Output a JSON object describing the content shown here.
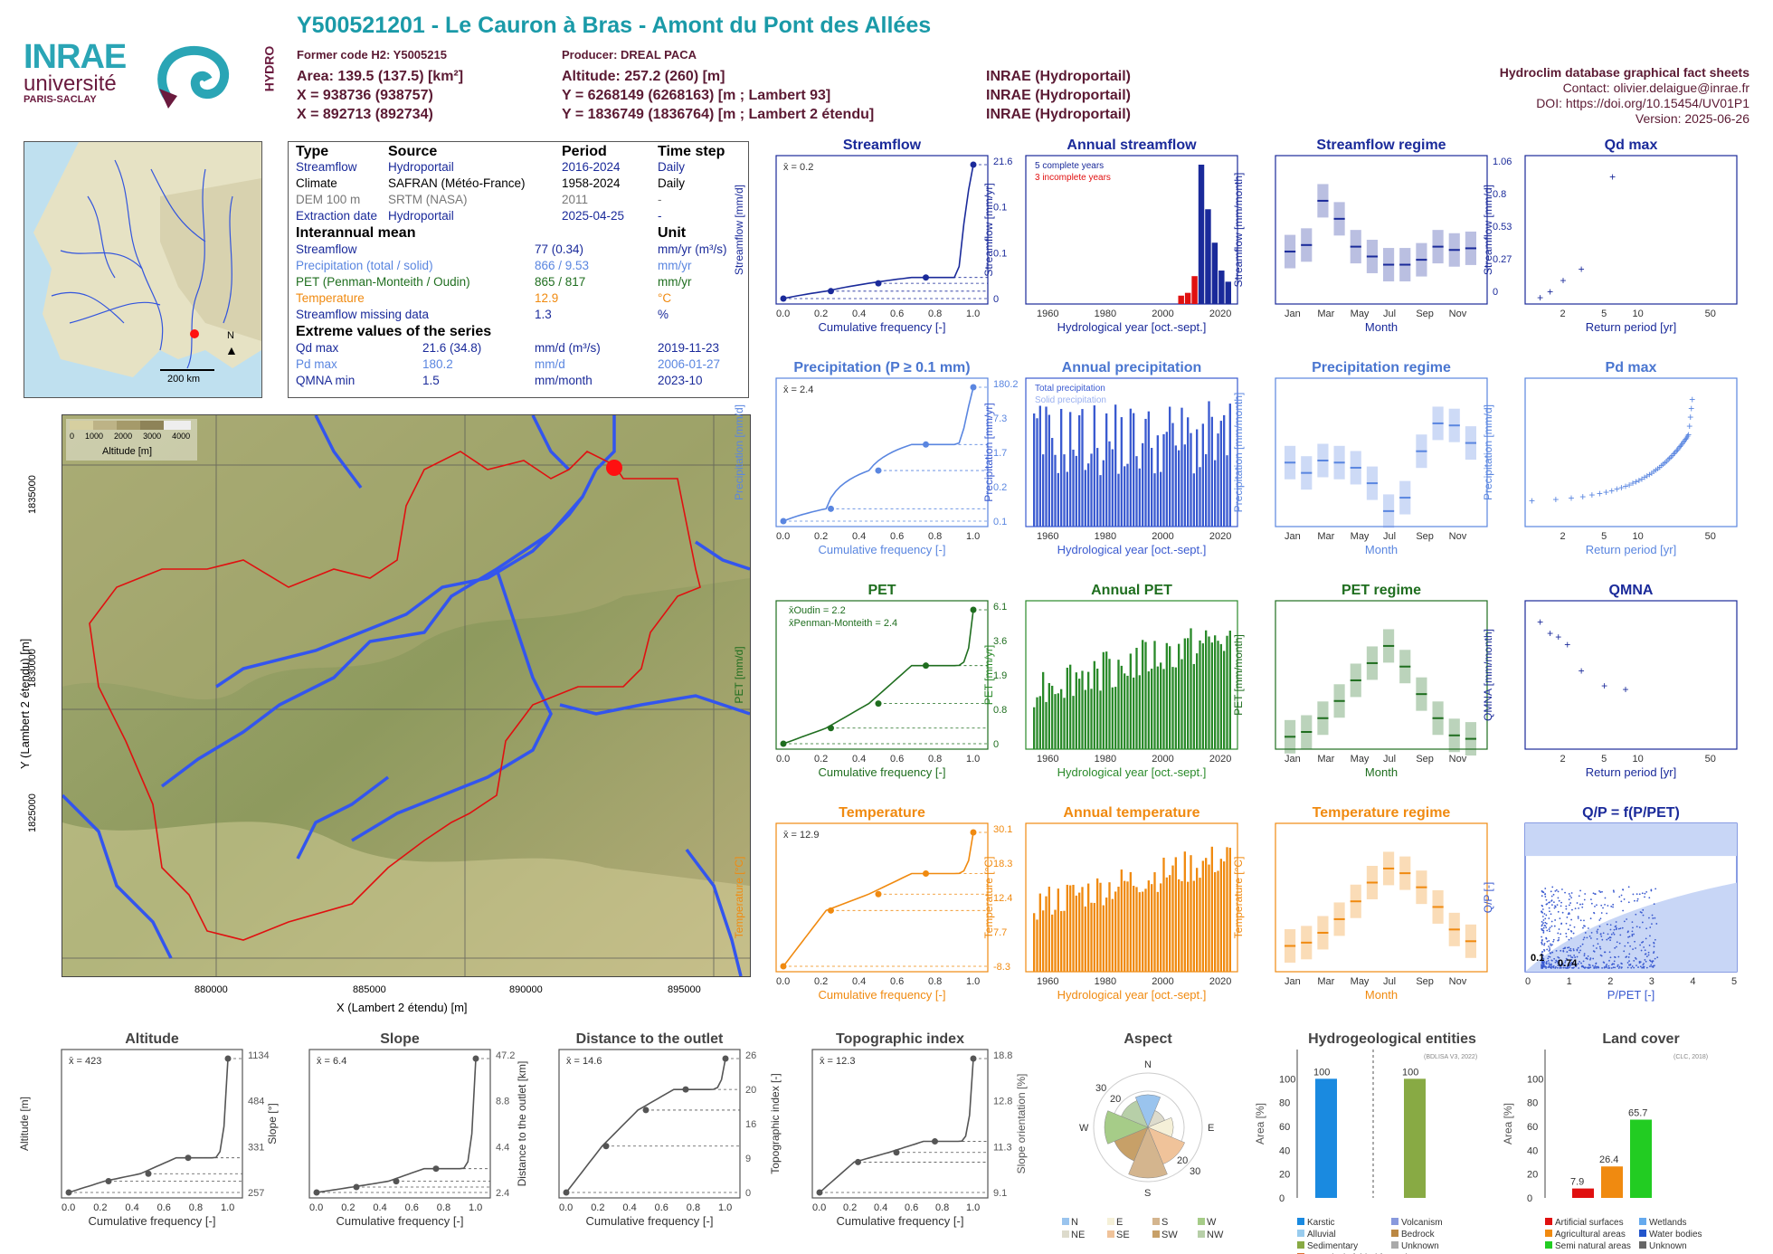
{
  "header": {
    "title": "Y500521201 - Le Cauron à Bras - Amont du Pont des Allées",
    "former_code": "Former code H2: Y5005215",
    "producer": "Producer: DREAL PACA",
    "area": "Area: 139.5 (137.5) [km²]",
    "altitude": "Altitude: 257.2 (260) [m]",
    "x93": "X = 938736 (938757)",
    "y93": "Y = 6268149 (6268163) [m ; Lambert 93]",
    "x2": "X = 892713 (892734)",
    "y2": "Y = 1836749 (1836764) [m ; Lambert 2 étendu]",
    "src1": "INRAE (Hydroportail)",
    "src2": "INRAE (Hydroportail)",
    "src3": "INRAE (Hydroportail)"
  },
  "logos": {
    "inrae": "INRAE",
    "universite": "université",
    "paris_saclay": "PARIS-SACLAY",
    "hydro": "HYDRO"
  },
  "right_info": {
    "title": "Hydroclim database graphical fact sheets",
    "contact": "Contact: olivier.delaigue@inrae.fr",
    "doi": "DOI: https://doi.org/10.15454/UV01P1",
    "version": "Version: 2025-06-26"
  },
  "info_table": {
    "headers": [
      "Type",
      "Source",
      "Period",
      "Time step"
    ],
    "rows": [
      [
        "Streamflow",
        "Hydroportail",
        "2016-2024",
        "Daily"
      ],
      [
        "Climate",
        "SAFRAN (Météo-France)",
        "1958-2024",
        "Daily"
      ],
      [
        "DEM 100 m",
        "SRTM (NASA)",
        "2011",
        "-"
      ],
      [
        "Extraction date",
        "Hydroportail",
        "2025-04-25",
        "-"
      ]
    ],
    "mean_title": "Interannual mean",
    "mean_unit": "Unit",
    "means": [
      [
        "Streamflow",
        "77 (0.34)",
        "mm/yr (m³/s)"
      ],
      [
        "Precipitation (total / solid)",
        "866 / 9.53",
        "mm/yr"
      ],
      [
        "PET (Penman-Monteith / Oudin)",
        "865 / 817",
        "mm/yr"
      ],
      [
        "Temperature",
        "12.9",
        "°C"
      ],
      [
        "Streamflow missing data",
        "1.3",
        "%"
      ]
    ],
    "extreme_title": "Extreme values of the series",
    "extremes": [
      [
        "Qd max",
        "21.6 (34.8)",
        "mm/d (m³/s)",
        "2019-11-23"
      ],
      [
        "Pd max",
        "180.2",
        "mm/d",
        "2006-01-27"
      ],
      [
        "QMNA min",
        "1.5",
        "mm/month",
        "2023-10"
      ]
    ]
  },
  "inset_map": {
    "scale": "200 km",
    "north": "N"
  },
  "main_map": {
    "xlabel": "X (Lambert 2 étendu) [m]",
    "ylabel": "Y (Lambert 2 étendu) [m]",
    "xticks": [
      "880000",
      "885000",
      "890000",
      "895000"
    ],
    "yticks": [
      "1835000",
      "1830000",
      "1825000"
    ],
    "legend_ticks": [
      "0",
      "1000",
      "2000",
      "3000",
      "4000"
    ],
    "legend_label": "Altitude [m]"
  },
  "chart_data": [
    {
      "id": "streamflow_fdc",
      "type": "line",
      "title": "Streamflow",
      "xlabel": "Cumulative frequency [-]",
      "ylabel": "Streamflow [mm/d]",
      "mean": "x̄ = 0.2",
      "right_ticks": [
        "21.6",
        "0.1",
        "0.1",
        "0"
      ],
      "x": [
        0,
        0.25,
        0.5,
        0.75,
        1.0
      ],
      "y": [
        0.05,
        0.07,
        0.1,
        0.13,
        21.6
      ],
      "color": "#1a2a9a"
    },
    {
      "id": "annual_streamflow",
      "type": "bar",
      "title": "Annual streamflow",
      "xlabel": "Hydrological year [oct.-sept.]",
      "ylabel": "Streamflow [mm/yr]",
      "legend": [
        "5 complete years",
        "3 incomplete years"
      ],
      "years": [
        2016,
        2017,
        2018,
        2019,
        2020,
        2021,
        2022,
        2023
      ],
      "values": [
        15,
        20,
        50,
        250,
        170,
        110,
        60,
        40
      ],
      "color": "#1a2a9a"
    },
    {
      "id": "streamflow_regime",
      "type": "bar",
      "title": "Streamflow regime",
      "xlabel": "Month",
      "ylabel": "Streamflow [mm/month]",
      "ylabel2": "Streamflow [m³/s]",
      "right_ticks": [
        "1.06",
        "0.8",
        "0.53",
        "0.27",
        "0"
      ],
      "categories": [
        "Jan",
        "Feb",
        "Mar",
        "Apr",
        "May",
        "Jun",
        "Jul",
        "Aug",
        "Sep",
        "Oct",
        "Nov",
        "Dec"
      ],
      "values": [
        3.2,
        3.6,
        6.3,
        5.2,
        3.5,
        2.9,
        2.4,
        2.4,
        2.7,
        3.5,
        3.3,
        3.4
      ],
      "color": "#1a2a9a"
    },
    {
      "id": "qd_max",
      "type": "scatter",
      "title": "Qd max",
      "xlabel": "Return period [yr]",
      "ylabel": "Streamflow [mm/d]",
      "x": [
        1.2,
        1.5,
        2,
        3,
        6
      ],
      "y": [
        0.5,
        1.5,
        3.5,
        5.5,
        21.6
      ],
      "color": "#1a2a9a"
    },
    {
      "id": "precip_fdc",
      "type": "line",
      "title": "Precipitation (P ≥ 0.1 mm)",
      "xlabel": "Cumulative frequency [-]",
      "ylabel": "Precipitation [mm/d]",
      "mean": "x̄ = 2.4",
      "right_ticks": [
        "180.2",
        "7.3",
        "1.7",
        "0.2",
        "0.1"
      ],
      "x": [
        0,
        0.25,
        0.5,
        0.75,
        1.0
      ],
      "y": [
        0.1,
        0.2,
        1.7,
        7.3,
        180.2
      ],
      "color": "#5a86e0"
    },
    {
      "id": "annual_precip",
      "type": "bar",
      "title": "Annual precipitation",
      "xlabel": "Hydrological year [oct.-sept.]",
      "ylabel": "Precipitation [mm/yr]",
      "legend": [
        "Total precipitation",
        "Solid precipitation"
      ],
      "x_start": 1959,
      "x_end": 2024,
      "color": "#3a5ad0"
    },
    {
      "id": "precip_regime",
      "type": "bar",
      "title": "Precipitation regime",
      "xlabel": "Month",
      "ylabel": "Precipitation [mm/month]",
      "categories": [
        "Jan",
        "Feb",
        "Mar",
        "Apr",
        "May",
        "Jun",
        "Jul",
        "Aug",
        "Sep",
        "Oct",
        "Nov",
        "Dec"
      ],
      "values": [
        62,
        52,
        64,
        62,
        57,
        42,
        15,
        28,
        73,
        100,
        98,
        81
      ],
      "color": "#5a86e0"
    },
    {
      "id": "pd_max",
      "type": "scatter",
      "title": "Pd max",
      "xlabel": "Return period [yr]",
      "ylabel": "Precipitation [mm/d]",
      "color": "#5a86e0"
    },
    {
      "id": "pet_fdc",
      "type": "line",
      "title": "PET",
      "xlabel": "Cumulative frequency [-]",
      "ylabel": "PET [mm/d]",
      "legend": [
        "x̄Oudin = 2.2",
        "x̄Penman-Monteith = 2.4"
      ],
      "right_ticks": [
        "6.1",
        "3.6",
        "1.9",
        "0.8",
        "0"
      ],
      "x": [
        0,
        0.25,
        0.5,
        0.75,
        1.0
      ],
      "y": [
        0.1,
        0.8,
        1.9,
        3.6,
        6.1
      ],
      "color": "#1f6e1f"
    },
    {
      "id": "annual_pet",
      "type": "bar",
      "title": "Annual PET",
      "xlabel": "Hydrological year [oct.-sept.]",
      "ylabel": "PET [mm/yr]",
      "x_start": 1959,
      "x_end": 2024,
      "color": "#2a8a2a"
    },
    {
      "id": "pet_regime",
      "type": "bar",
      "title": "PET regime",
      "xlabel": "Month",
      "ylabel": "PET [mm/month]",
      "categories": [
        "Jan",
        "Feb",
        "Mar",
        "Apr",
        "May",
        "Jun",
        "Jul",
        "Aug",
        "Sep",
        "Oct",
        "Nov",
        "Dec"
      ],
      "values": [
        18,
        25,
        45,
        70,
        100,
        125,
        150,
        120,
        80,
        45,
        20,
        15
      ],
      "color": "#1f6e1f"
    },
    {
      "id": "qmna",
      "type": "scatter",
      "title": "QMNA",
      "xlabel": "Return period [yr]",
      "ylabel": "QMNA [mm/month]",
      "x": [
        1.2,
        1.5,
        1.8,
        2.2,
        3,
        5,
        8
      ],
      "y": [
        3.3,
        3.0,
        2.9,
        2.7,
        2.0,
        1.6,
        1.5
      ],
      "color": "#1a2a9a"
    },
    {
      "id": "temp_fdc",
      "type": "line",
      "title": "Temperature",
      "xlabel": "Cumulative frequency [-]",
      "ylabel": "Temperature [°C]",
      "mean": "x̄ = 12.9",
      "right_ticks": [
        "30.1",
        "18.3",
        "12.4",
        "7.7",
        "-8.3"
      ],
      "x": [
        0,
        0.25,
        0.5,
        0.75,
        1.0
      ],
      "y": [
        -8.3,
        7.7,
        12.4,
        18.3,
        30.1
      ],
      "color": "#f08a10"
    },
    {
      "id": "annual_temp",
      "type": "bar",
      "title": "Annual temperature",
      "xlabel": "Hydrological year [oct.-sept.]",
      "ylabel": "Temperature [°C]",
      "x_start": 1959,
      "x_end": 2024,
      "color": "#f08a10"
    },
    {
      "id": "temp_regime",
      "type": "bar",
      "title": "Temperature regime",
      "xlabel": "Month",
      "ylabel": "Temperature [°C]",
      "categories": [
        "Jan",
        "Feb",
        "Mar",
        "Apr",
        "May",
        "Jun",
        "Jul",
        "Aug",
        "Sep",
        "Oct",
        "Nov",
        "Dec"
      ],
      "values": [
        5.5,
        6.2,
        8.3,
        11.2,
        15,
        19,
        22,
        21,
        18,
        13.8,
        9,
        6.5
      ],
      "color": "#f08a10"
    },
    {
      "id": "qp_ppet",
      "type": "scatter",
      "title": "Q/P = f(P/PET)",
      "xlabel": "P/PET [-]",
      "ylabel": "Q/P [-]",
      "annotations": [
        "0.1",
        "0.74"
      ],
      "color": "#3a5ad0"
    },
    {
      "id": "altitude_cdf",
      "type": "line",
      "title": "Altitude",
      "xlabel": "Cumulative frequency [-]",
      "ylabel": "Altitude [m]",
      "mean": "x̄ = 423",
      "right_ticks": [
        "1134",
        "484",
        "331",
        "257"
      ],
      "x": [
        0,
        0.25,
        0.5,
        0.75,
        1.0
      ],
      "y": [
        257,
        331,
        380,
        484,
        1134
      ],
      "color": "#555555"
    },
    {
      "id": "slope_cdf",
      "type": "line",
      "title": "Slope",
      "xlabel": "Cumulative frequency [-]",
      "ylabel": "Slope [°]",
      "mean": "x̄ = 6.4",
      "right_ticks": [
        "47.2",
        "8.8",
        "4.4",
        "2.4"
      ],
      "x": [
        0,
        0.25,
        0.5,
        0.75,
        1.0
      ],
      "y": [
        0.5,
        2.4,
        4.4,
        8.8,
        47.2
      ],
      "color": "#555555"
    },
    {
      "id": "distance_cdf",
      "type": "line",
      "title": "Distance to the outlet",
      "xlabel": "Cumulative frequency [-]",
      "ylabel": "Distance to the outlet [km]",
      "mean": "x̄ = 14.6",
      "right_ticks": [
        "26",
        "20",
        "16",
        "9",
        "0"
      ],
      "x": [
        0,
        0.25,
        0.5,
        0.75,
        1.0
      ],
      "y": [
        0,
        9,
        16,
        20,
        26
      ],
      "color": "#555555"
    },
    {
      "id": "topo_cdf",
      "type": "line",
      "title": "Topographic index",
      "xlabel": "Cumulative frequency [-]",
      "ylabel": "Topographic index [-]",
      "mean": "x̄ = 12.3",
      "right_ticks": [
        "18.8",
        "12.8",
        "11.3",
        "9.1"
      ],
      "x": [
        0,
        0.25,
        0.5,
        0.75,
        1.0
      ],
      "y": [
        9.1,
        11.3,
        12.0,
        12.8,
        18.8
      ],
      "color": "#555555"
    },
    {
      "id": "aspect",
      "type": "pie",
      "title": "Aspect",
      "ylabel": "Slope orientation [%]",
      "categories": [
        "N",
        "NE",
        "E",
        "SE",
        "S",
        "SW",
        "W",
        "NW"
      ],
      "legend": [
        "N",
        "NE",
        "E",
        "SE",
        "S",
        "SW",
        "W",
        "NW"
      ],
      "ticks": [
        "30",
        "20",
        "20",
        "30"
      ]
    },
    {
      "id": "hydrogeology",
      "type": "bar",
      "title": "Hydrogeological entities",
      "ylabel": "Area [%]",
      "source": "(BDLISA V3, 2022)",
      "values": [
        100,
        100
      ],
      "legend": [
        "Karstic",
        "Volcanism",
        "Alluvial",
        "Bedrock",
        "Sedimentary",
        "Unknown",
        "Intensively folded formation"
      ]
    },
    {
      "id": "land_cover",
      "type": "bar",
      "title": "Land cover",
      "ylabel": "Area [%]",
      "source": "(CLC, 2018)",
      "values": [
        7.9,
        26.4,
        65.7
      ],
      "legend": [
        "Artificial surfaces",
        "Wetlands",
        "Agricultural areas",
        "Water bodies",
        "Semi natural areas",
        "Unknown"
      ]
    }
  ],
  "axis_ticks": {
    "freq": [
      "0.0",
      "0.2",
      "0.4",
      "0.6",
      "0.8",
      "1.0"
    ],
    "months": [
      "Jan",
      "Mar",
      "May",
      "Jul",
      "Sep",
      "Nov"
    ],
    "years": [
      "1960",
      "1980",
      "2000",
      "2020"
    ],
    "return": [
      "2",
      "5",
      "10",
      "50"
    ]
  }
}
